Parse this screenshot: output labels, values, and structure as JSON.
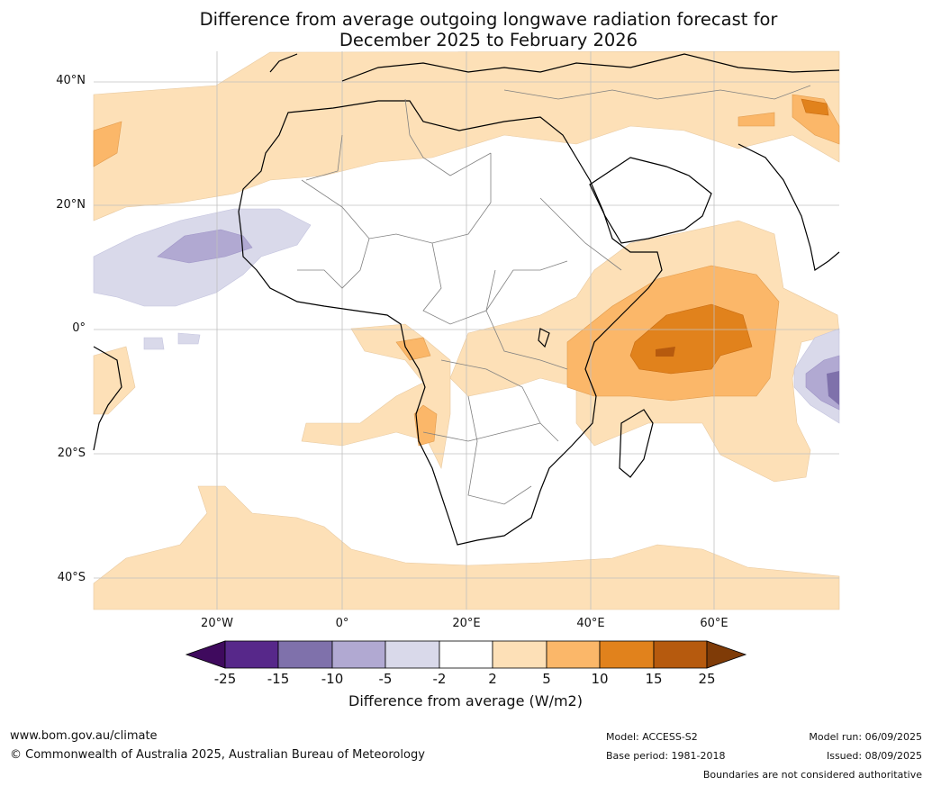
{
  "title": {
    "line1": "Difference from average outgoing longwave radiation forecast for",
    "line2": "December 2025 to February 2026"
  },
  "axes": {
    "lat_labels": [
      "40°N",
      "20°N",
      "0°",
      "20°S",
      "40°S"
    ],
    "lon_labels": [
      "20°W",
      "0°",
      "20°E",
      "40°E",
      "60°E"
    ]
  },
  "colorbar": {
    "ticks": [
      "-25",
      "-15",
      "-10",
      "-5",
      "-2",
      "2",
      "5",
      "10",
      "15",
      "25"
    ],
    "colors": [
      "#3f0a5e",
      "#57288a",
      "#7f71ab",
      "#b1a9d2",
      "#d9d9ea",
      "#ffffff",
      "#fde0b7",
      "#fbb769",
      "#e1821c",
      "#b65a0e",
      "#7f3b07"
    ],
    "label": "Difference from average (W/m2)"
  },
  "footer": {
    "url": "www.bom.gov.au/climate",
    "copyright": "© Commonwealth of Australia 2025, Australian Bureau of Meteorology",
    "model": "Model: ACCESS-S2",
    "base_period": "Base period: 1981-2018",
    "model_run": "Model run: 06/09/2025",
    "issued": "Issued: 08/09/2025",
    "disclaimer": "Boundaries are not considered authoritative"
  }
}
